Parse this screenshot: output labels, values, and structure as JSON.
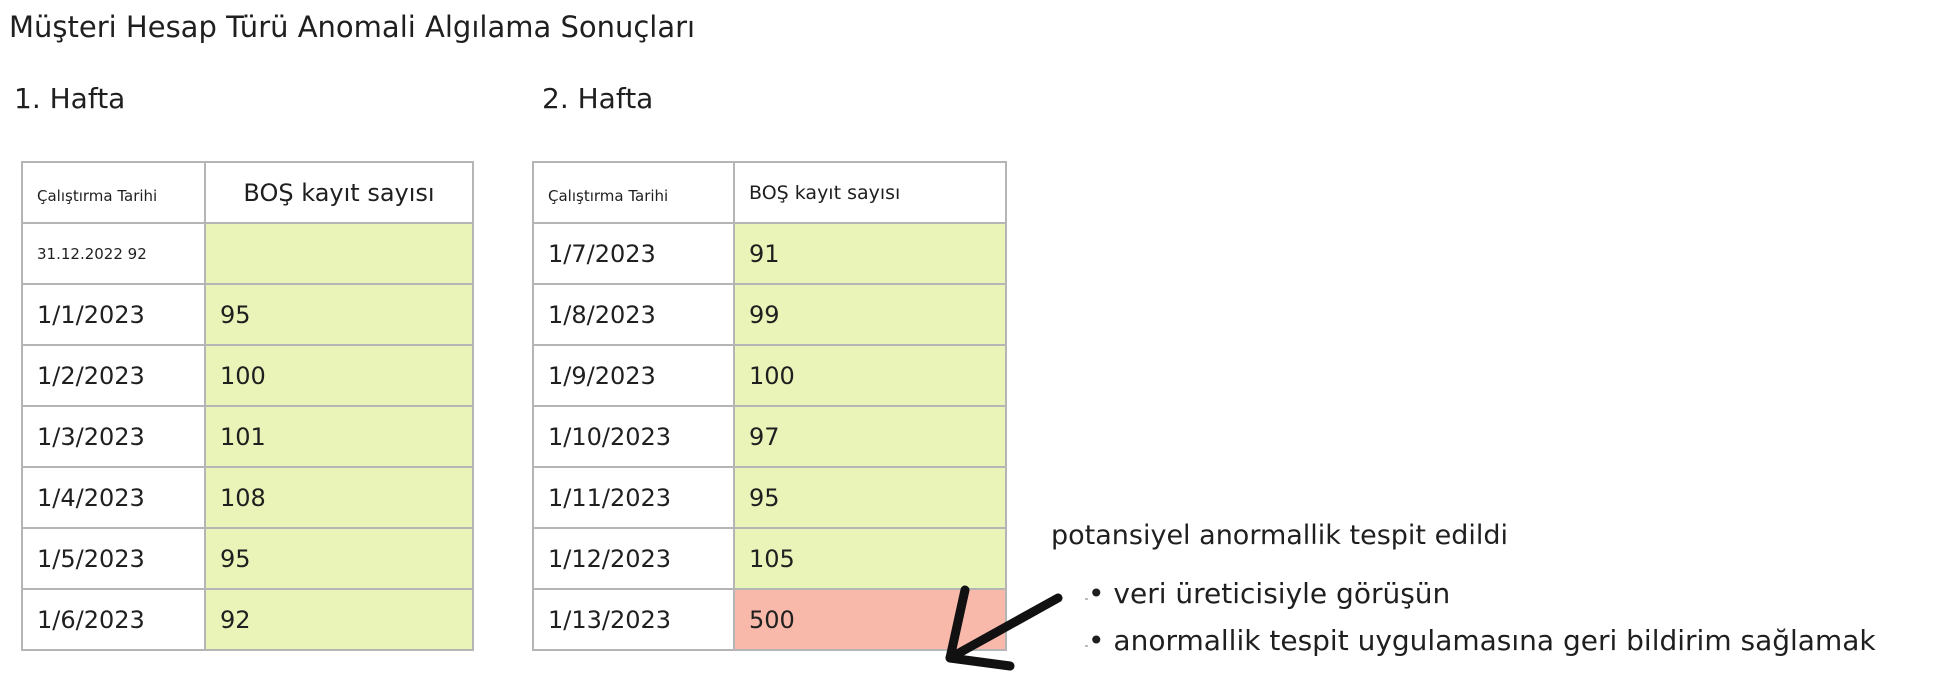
{
  "title": "Müşteri Hesap Türü Anomali Algılama Sonuçları",
  "week1": {
    "label": "1. Hafta",
    "header_date": "Çalıştırma Tarihi",
    "header_value": "BOŞ kayıt sayısı",
    "rows": [
      {
        "date": "31.12.2022 92",
        "value": ""
      },
      {
        "date": "1/1/2023",
        "value": "95"
      },
      {
        "date": "1/2/2023",
        "value": "100"
      },
      {
        "date": "1/3/2023",
        "value": "101"
      },
      {
        "date": "1/4/2023",
        "value": "108"
      },
      {
        "date": "1/5/2023",
        "value": "95"
      },
      {
        "date": "1/6/2023",
        "value": "92"
      }
    ]
  },
  "week2": {
    "label": "2. Hafta",
    "header_date": "Çalıştırma Tarihi",
    "header_value": "BOŞ kayıt sayısı",
    "rows": [
      {
        "date": "1/7/2023",
        "value": "91"
      },
      {
        "date": "1/8/2023",
        "value": "99"
      },
      {
        "date": "1/9/2023",
        "value": "100"
      },
      {
        "date": "1/10/2023",
        "value": "97"
      },
      {
        "date": "1/11/2023",
        "value": "95"
      },
      {
        "date": "1/12/2023",
        "value": "105"
      },
      {
        "date": "1/13/2023",
        "value": "500"
      }
    ]
  },
  "annotation": {
    "title": "potansiyel anormallik tespit edildi",
    "bullets": [
      "• veri üreticisiyle görüşün",
      "• anormallik tespit uygulamasına geri bildirim sağlamak"
    ]
  },
  "colors": {
    "normal_cell": "#eaf3b8",
    "anomaly_cell": "#f8b8aa",
    "border": "#b5b5b5"
  }
}
